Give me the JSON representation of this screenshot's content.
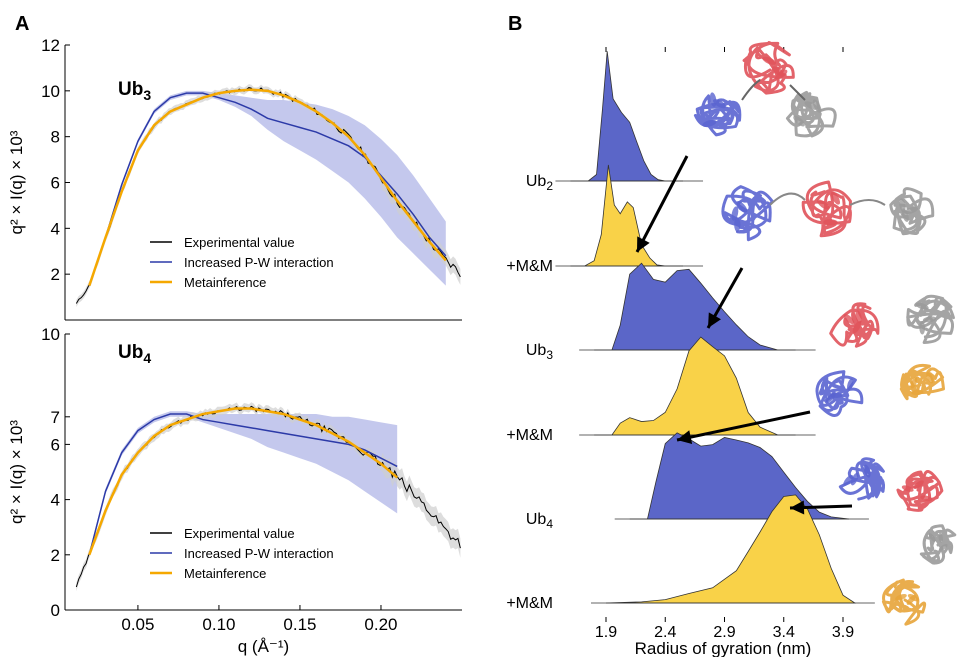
{
  "panel_a_letter": "A",
  "panel_b_letter": "B",
  "chart_data": [
    {
      "type": "line",
      "panel": "A (top)",
      "annotation_main": "Ub",
      "annotation_sub": "3",
      "ylabel": "q² × I(q) × 10³",
      "xlim": [
        0.005,
        0.25
      ],
      "ylim": [
        0,
        12
      ],
      "yticks": [
        2,
        4,
        6,
        8,
        10,
        12
      ],
      "xticks": [],
      "grid": false,
      "legend_position": "lower-left",
      "series": [
        {
          "name": "Experimental value",
          "color": "#000000",
          "x": [
            0.012,
            0.02,
            0.03,
            0.04,
            0.05,
            0.06,
            0.07,
            0.08,
            0.09,
            0.1,
            0.11,
            0.12,
            0.13,
            0.14,
            0.15,
            0.16,
            0.17,
            0.18,
            0.19,
            0.2,
            0.21,
            0.22,
            0.23,
            0.24,
            0.25
          ],
          "y": [
            0.7,
            1.5,
            3.5,
            5.6,
            7.4,
            8.5,
            9.1,
            9.4,
            9.7,
            9.9,
            10.0,
            10.1,
            10.0,
            9.8,
            9.5,
            9.1,
            8.6,
            8.0,
            7.2,
            6.2,
            5.2,
            4.3,
            3.4,
            2.6,
            2.0
          ]
        },
        {
          "name": "Increased P-W interaction",
          "color": "#2c3aa8",
          "band_color": "#7c84d6",
          "x": [
            0.02,
            0.03,
            0.04,
            0.05,
            0.06,
            0.07,
            0.08,
            0.09,
            0.1,
            0.11,
            0.12,
            0.13,
            0.14,
            0.15,
            0.16,
            0.17,
            0.18,
            0.19,
            0.2,
            0.21,
            0.22,
            0.23,
            0.24
          ],
          "y": [
            1.5,
            3.6,
            5.9,
            7.8,
            9.1,
            9.7,
            9.9,
            9.9,
            9.7,
            9.5,
            9.2,
            8.8,
            8.6,
            8.4,
            8.2,
            7.9,
            7.6,
            7.1,
            6.3,
            5.5,
            4.6,
            3.6,
            2.8
          ],
          "y_low": [
            1.4,
            3.5,
            5.8,
            7.7,
            9.0,
            9.6,
            9.8,
            9.8,
            9.6,
            9.3,
            8.9,
            8.3,
            7.8,
            7.4,
            7.0,
            6.5,
            6.0,
            5.3,
            4.5,
            3.6,
            2.9,
            2.2,
            1.5
          ],
          "y_high": [
            1.6,
            3.7,
            6.0,
            7.9,
            9.2,
            9.8,
            10.0,
            10.0,
            9.9,
            9.8,
            9.7,
            9.6,
            9.6,
            9.5,
            9.4,
            9.2,
            8.9,
            8.5,
            7.9,
            7.2,
            6.3,
            5.3,
            4.3
          ]
        },
        {
          "name": "Metainference",
          "color": "#f5a800",
          "x": [
            0.02,
            0.03,
            0.04,
            0.05,
            0.06,
            0.07,
            0.08,
            0.09,
            0.1,
            0.11,
            0.12,
            0.13,
            0.14,
            0.15,
            0.16,
            0.17,
            0.18,
            0.19,
            0.2,
            0.21,
            0.22,
            0.23,
            0.24
          ],
          "y": [
            1.5,
            3.6,
            5.6,
            7.4,
            8.5,
            9.1,
            9.4,
            9.7,
            9.9,
            10.0,
            10.05,
            10.0,
            9.8,
            9.5,
            9.1,
            8.6,
            8.0,
            7.2,
            6.2,
            5.2,
            4.3,
            3.4,
            2.6
          ]
        }
      ]
    },
    {
      "type": "line",
      "panel": "A (bottom)",
      "annotation_main": "Ub",
      "annotation_sub": "4",
      "ylabel": "q² × I(q) × 10³",
      "xlabel": "q (Å⁻¹)",
      "xlim": [
        0.005,
        0.25
      ],
      "ylim": [
        0,
        10
      ],
      "yticks": [
        0,
        2,
        4,
        6,
        7,
        10
      ],
      "xticks": [
        0.05,
        0.1,
        0.15,
        0.2
      ],
      "xticklabels": [
        "0.05",
        "0.10",
        "0.15",
        "0.20"
      ],
      "grid": false,
      "legend_position": "lower-right",
      "series": [
        {
          "name": "Experimental value",
          "color": "#000000",
          "x": [
            0.012,
            0.02,
            0.03,
            0.04,
            0.05,
            0.06,
            0.07,
            0.08,
            0.09,
            0.1,
            0.11,
            0.12,
            0.13,
            0.14,
            0.15,
            0.16,
            0.17,
            0.18,
            0.19,
            0.2,
            0.21,
            0.22,
            0.23,
            0.24,
            0.25
          ],
          "y": [
            0.85,
            2.0,
            3.6,
            4.9,
            5.7,
            6.3,
            6.7,
            6.9,
            7.1,
            7.2,
            7.3,
            7.3,
            7.2,
            7.1,
            6.9,
            6.7,
            6.4,
            6.1,
            5.7,
            5.3,
            4.8,
            4.2,
            3.6,
            2.9,
            2.4
          ]
        },
        {
          "name": "Increased P-W interaction",
          "color": "#2c3aa8",
          "band_color": "#7c84d6",
          "x": [
            0.02,
            0.03,
            0.04,
            0.05,
            0.06,
            0.07,
            0.08,
            0.09,
            0.1,
            0.11,
            0.12,
            0.13,
            0.14,
            0.15,
            0.16,
            0.17,
            0.18,
            0.19,
            0.2,
            0.21
          ],
          "y": [
            2.0,
            4.3,
            5.7,
            6.5,
            6.9,
            7.1,
            7.1,
            6.9,
            6.8,
            6.7,
            6.6,
            6.5,
            6.4,
            6.3,
            6.2,
            6.1,
            6.0,
            5.8,
            5.5,
            5.2
          ],
          "y_low": [
            1.9,
            4.2,
            5.6,
            6.4,
            6.8,
            7.0,
            7.0,
            6.8,
            6.6,
            6.4,
            6.2,
            5.9,
            5.7,
            5.5,
            5.3,
            5.0,
            4.7,
            4.3,
            3.9,
            3.5
          ],
          "y_high": [
            2.1,
            4.4,
            5.8,
            6.6,
            7.0,
            7.2,
            7.2,
            7.1,
            7.1,
            7.1,
            7.1,
            7.1,
            7.1,
            7.1,
            7.1,
            7.0,
            7.0,
            6.9,
            6.8,
            6.7
          ]
        },
        {
          "name": "Metainference",
          "color": "#f5a800",
          "x": [
            0.02,
            0.03,
            0.04,
            0.05,
            0.06,
            0.07,
            0.08,
            0.09,
            0.1,
            0.11,
            0.12,
            0.13,
            0.14,
            0.15,
            0.16,
            0.17,
            0.18,
            0.19,
            0.2,
            0.21
          ],
          "y": [
            2.0,
            3.6,
            4.9,
            5.7,
            6.3,
            6.7,
            6.9,
            7.1,
            7.2,
            7.3,
            7.3,
            7.2,
            7.1,
            6.9,
            6.7,
            6.4,
            6.1,
            5.7,
            5.3,
            4.8
          ]
        }
      ]
    },
    {
      "type": "area",
      "panel": "B",
      "xlabel": "Radius of gyration (nm)",
      "xticks": [
        1.9,
        2.4,
        2.9,
        3.4,
        3.9
      ],
      "xticklabels": [
        "1.9",
        "2.4",
        "2.9",
        "3.4",
        "3.9"
      ],
      "xlim": [
        1.6,
        4.2
      ],
      "grid": false,
      "colors": {
        "unbiased": "#5b66c8",
        "metainference": "#f9d248"
      },
      "series": [
        {
          "label_main": "Ub",
          "label_sub": "2",
          "color": "#5b66c8",
          "x": [
            1.6,
            1.75,
            1.82,
            1.87,
            1.91,
            1.96,
            2.03,
            2.1,
            2.16,
            2.22,
            2.28,
            2.34,
            2.4,
            2.55
          ],
          "y": [
            0.0,
            0.0,
            0.05,
            0.55,
            1.0,
            0.62,
            0.52,
            0.45,
            0.3,
            0.14,
            0.05,
            0.01,
            0.0,
            0.0
          ]
        },
        {
          "label_main": "+M&M",
          "label_sub": "",
          "color": "#f9d248",
          "x": [
            1.6,
            1.72,
            1.8,
            1.86,
            1.92,
            1.97,
            2.02,
            2.08,
            2.13,
            2.2,
            2.27,
            2.33,
            2.4,
            2.55
          ],
          "y": [
            0.0,
            0.0,
            0.05,
            0.28,
            0.96,
            0.58,
            0.48,
            0.62,
            0.55,
            0.22,
            0.06,
            0.01,
            0.0,
            0.0
          ]
        },
        {
          "label_main": "Ub",
          "label_sub": "3",
          "color": "#5b66c8",
          "x": [
            1.8,
            1.95,
            2.02,
            2.1,
            2.2,
            2.3,
            2.4,
            2.5,
            2.6,
            2.7,
            2.8,
            2.9,
            3.0,
            3.1,
            3.2,
            3.35,
            3.5
          ],
          "y": [
            0.0,
            0.0,
            0.25,
            0.75,
            0.88,
            0.72,
            0.66,
            0.78,
            0.82,
            0.66,
            0.52,
            0.4,
            0.25,
            0.12,
            0.05,
            0.0,
            0.0
          ]
        },
        {
          "label_main": "+M&M",
          "label_sub": "",
          "color": "#f9d248",
          "x": [
            1.8,
            1.95,
            2.02,
            2.1,
            2.2,
            2.3,
            2.4,
            2.5,
            2.6,
            2.7,
            2.8,
            2.9,
            3.0,
            3.1,
            3.2,
            3.35,
            3.5
          ],
          "y": [
            0.0,
            0.0,
            0.1,
            0.16,
            0.12,
            0.15,
            0.22,
            0.48,
            0.85,
            0.98,
            0.9,
            0.8,
            0.55,
            0.22,
            0.06,
            0.0,
            0.0
          ]
        },
        {
          "label_main": "Ub",
          "label_sub": "4",
          "color": "#5b66c8",
          "x": [
            2.1,
            2.25,
            2.32,
            2.4,
            2.5,
            2.6,
            2.7,
            2.8,
            2.9,
            3.0,
            3.1,
            3.2,
            3.3,
            3.4,
            3.5,
            3.6,
            3.7,
            3.8,
            3.95
          ],
          "y": [
            0.0,
            0.0,
            0.35,
            0.7,
            0.82,
            0.76,
            0.7,
            0.72,
            0.78,
            0.76,
            0.72,
            0.68,
            0.6,
            0.45,
            0.3,
            0.18,
            0.08,
            0.02,
            0.0
          ]
        },
        {
          "label_main": "+M&M",
          "label_sub": "",
          "color": "#f9d248",
          "x": [
            1.9,
            2.2,
            2.4,
            2.6,
            2.8,
            3.0,
            3.1,
            3.2,
            3.3,
            3.4,
            3.5,
            3.6,
            3.7,
            3.8,
            3.9,
            4.0
          ],
          "y": [
            0.0,
            0.01,
            0.03,
            0.07,
            0.15,
            0.3,
            0.45,
            0.65,
            0.82,
            0.95,
            0.98,
            0.85,
            0.6,
            0.3,
            0.08,
            0.0
          ]
        }
      ]
    }
  ]
}
